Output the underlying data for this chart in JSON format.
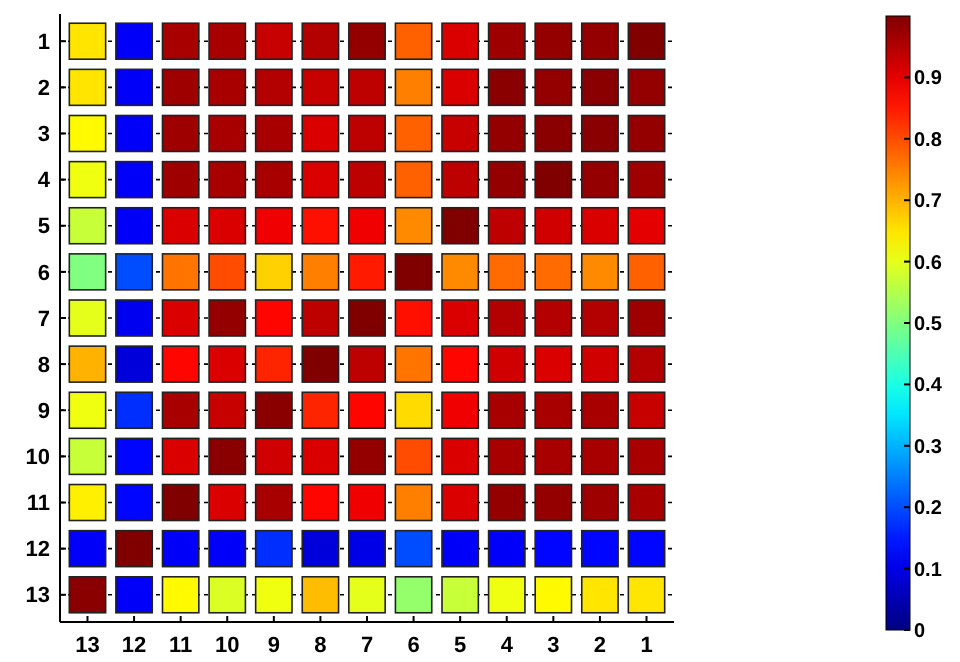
{
  "chart_data": {
    "type": "heatmap",
    "categories": [
      "13",
      "12",
      "11",
      "10",
      "9",
      "8",
      "7",
      "6",
      "5",
      "4",
      "3",
      "2",
      "1"
    ],
    "y_categories": [
      "1",
      "2",
      "3",
      "4",
      "5",
      "6",
      "7",
      "8",
      "9",
      "10",
      "11",
      "12",
      "13"
    ],
    "cells": [
      [
        0.65,
        0.12,
        0.96,
        0.96,
        0.93,
        0.95,
        0.98,
        0.78,
        0.91,
        0.97,
        0.98,
        0.98,
        1.0
      ],
      [
        0.65,
        0.12,
        0.97,
        0.96,
        0.95,
        0.93,
        0.94,
        0.75,
        0.91,
        0.99,
        0.98,
        0.99,
        0.98
      ],
      [
        0.63,
        0.12,
        0.97,
        0.96,
        0.96,
        0.91,
        0.94,
        0.78,
        0.93,
        0.98,
        0.99,
        0.99,
        0.98
      ],
      [
        0.61,
        0.12,
        0.97,
        0.96,
        0.96,
        0.91,
        0.94,
        0.78,
        0.94,
        0.98,
        1.0,
        0.98,
        0.97
      ],
      [
        0.57,
        0.12,
        0.91,
        0.91,
        0.89,
        0.86,
        0.89,
        0.74,
        1.0,
        0.94,
        0.92,
        0.91,
        0.9
      ],
      [
        0.5,
        0.2,
        0.76,
        0.8,
        0.67,
        0.75,
        0.85,
        1.0,
        0.74,
        0.77,
        0.77,
        0.74,
        0.78
      ],
      [
        0.6,
        0.11,
        0.91,
        0.98,
        0.87,
        0.94,
        1.0,
        0.86,
        0.91,
        0.95,
        0.95,
        0.95,
        0.97
      ],
      [
        0.7,
        0.09,
        0.87,
        0.91,
        0.84,
        1.0,
        0.94,
        0.76,
        0.87,
        0.92,
        0.91,
        0.92,
        0.95
      ],
      [
        0.61,
        0.17,
        0.96,
        0.93,
        0.99,
        0.84,
        0.87,
        0.66,
        0.89,
        0.96,
        0.96,
        0.96,
        0.93
      ],
      [
        0.57,
        0.13,
        0.91,
        0.99,
        0.92,
        0.91,
        0.98,
        0.8,
        0.91,
        0.96,
        0.96,
        0.96,
        0.96
      ],
      [
        0.64,
        0.13,
        1.0,
        0.91,
        0.96,
        0.87,
        0.89,
        0.75,
        0.91,
        0.98,
        0.98,
        0.97,
        0.96
      ],
      [
        0.12,
        1.0,
        0.12,
        0.12,
        0.17,
        0.09,
        0.1,
        0.2,
        0.12,
        0.12,
        0.13,
        0.13,
        0.13
      ],
      [
        0.99,
        0.12,
        0.63,
        0.59,
        0.61,
        0.69,
        0.6,
        0.52,
        0.57,
        0.61,
        0.63,
        0.65,
        0.65
      ]
    ],
    "clim": [
      0,
      1
    ],
    "cticks": [
      0,
      0.1,
      0.2,
      0.3,
      0.4,
      0.5,
      0.6,
      0.7,
      0.8,
      0.9
    ],
    "grid": "y"
  }
}
